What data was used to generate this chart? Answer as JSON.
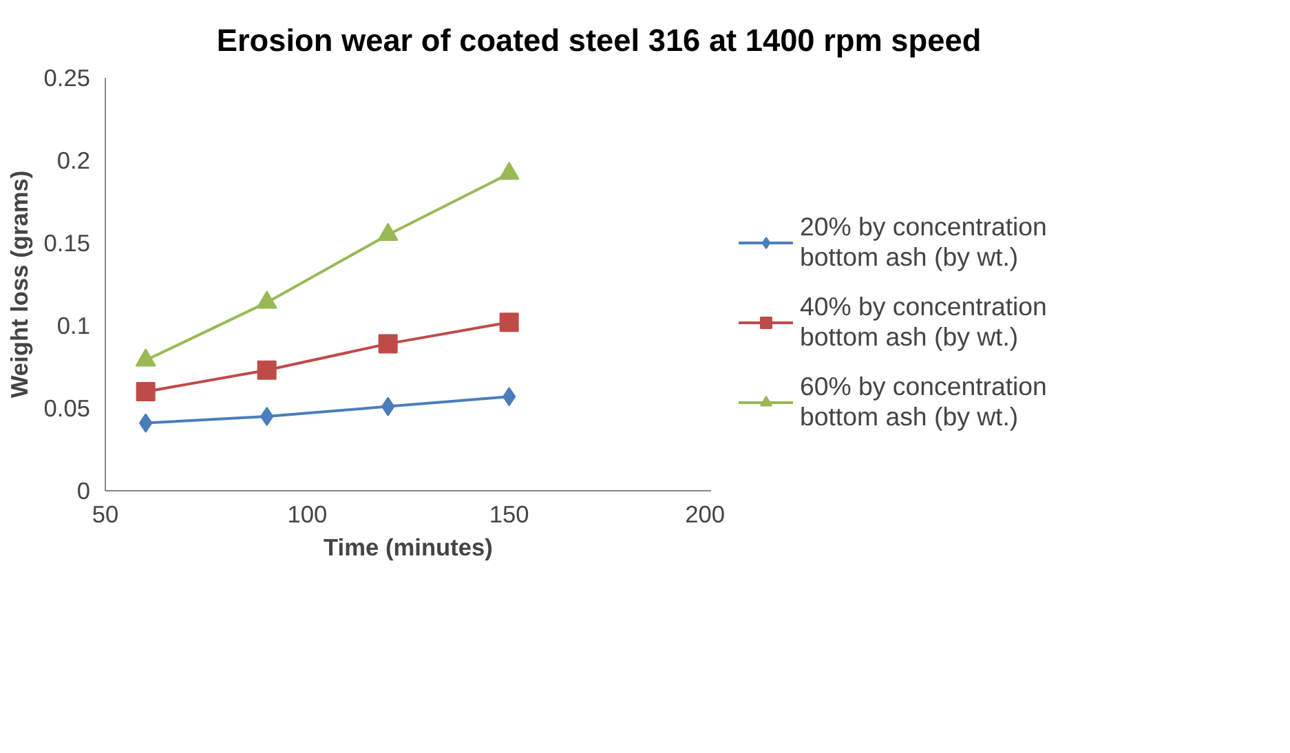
{
  "chart_data": {
    "type": "line",
    "title": "Erosion wear of coated steel 316 at 1400 rpm speed",
    "xlabel": "Time (minutes)",
    "ylabel": "Weight loss (grams)",
    "x": [
      60,
      90,
      120,
      150
    ],
    "series": [
      {
        "name": "20% by concentration bottom ash (by wt.)",
        "color": "#4a7ebb",
        "marker": "diamond",
        "values": [
          0.041,
          0.045,
          0.051,
          0.057
        ]
      },
      {
        "name": "40% by concentration bottom ash (by wt.)",
        "color": "#be4b48",
        "marker": "square",
        "values": [
          0.06,
          0.073,
          0.089,
          0.102
        ]
      },
      {
        "name": "60% by concentration bottom ash (by wt.)",
        "color": "#98b954",
        "marker": "triangle",
        "values": [
          0.079,
          0.114,
          0.155,
          0.192
        ]
      }
    ],
    "xlim": [
      50,
      200
    ],
    "xticks": [
      50,
      100,
      150,
      200
    ],
    "ylim": [
      0,
      0.25
    ],
    "yticks": [
      0,
      0.05,
      0.1,
      0.15,
      0.2,
      0.25
    ],
    "grid": false,
    "legend": "right",
    "line_style": "solid"
  }
}
